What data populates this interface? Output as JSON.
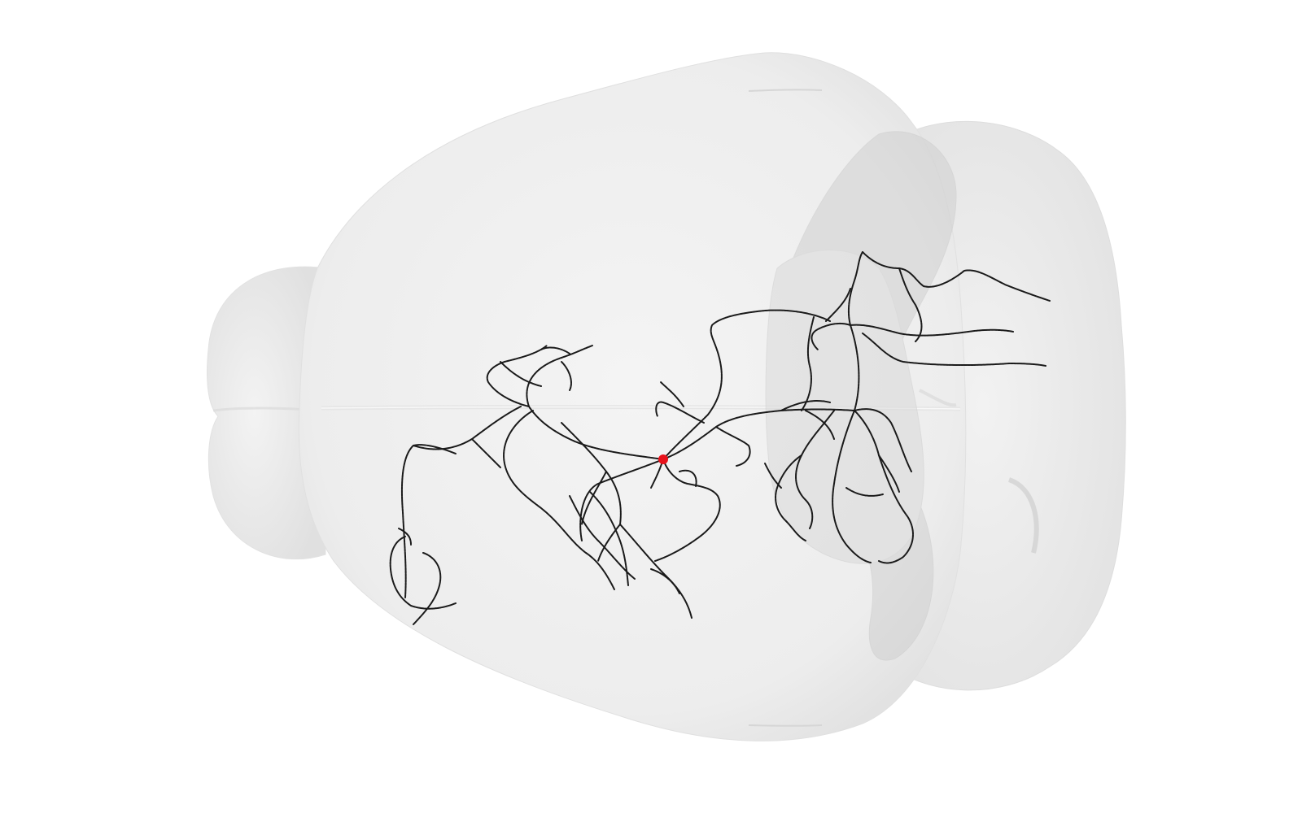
{
  "scene": {
    "background_color": "#ffffff",
    "brain_fill_color": "#efefef",
    "brain_edge_color": "#dcdcdc",
    "overlay_region_color": "#cfcfcf",
    "neuron_color": "#1a1a1a",
    "soma_color": "#e8121b"
  }
}
